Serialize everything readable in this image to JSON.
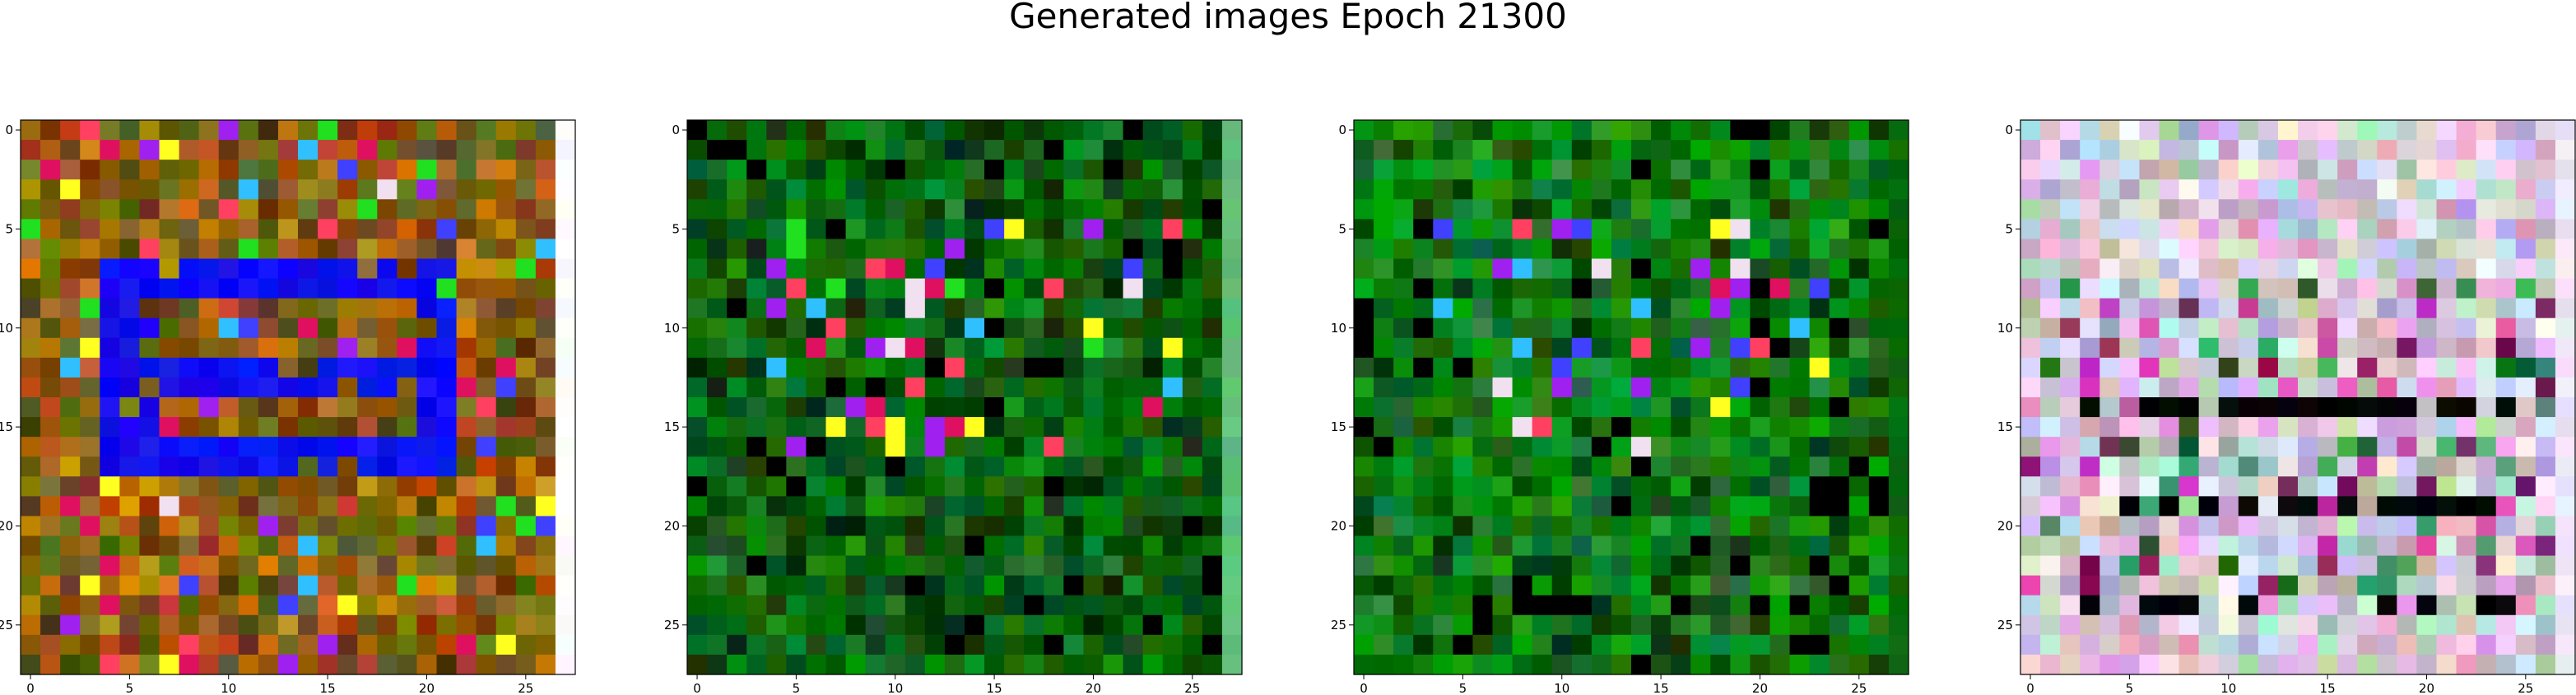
{
  "title": "Generated images Epoch 21300",
  "chart_data": {
    "type": "heatmap",
    "title": "Generated images Epoch 21300",
    "grid": false,
    "panels": [
      {
        "name": "",
        "xticks": [
          0,
          5,
          10,
          15,
          20,
          25
        ],
        "yticks": [
          0,
          5,
          10,
          15,
          20,
          25
        ],
        "xlim": [
          -0.5,
          27.5
        ],
        "ylim": [
          27.5,
          -0.5
        ],
        "style": "warm-noise",
        "base_colors": [
          "#7a6a0a",
          "#8a4a10",
          "#c08010",
          "#5a4a0a",
          "#b05a1a",
          "#6a5a20"
        ],
        "blue_digit_color": "#1010f0",
        "right_edge_color": "#ffffff"
      },
      {
        "name": "",
        "xticks": [
          0,
          5,
          10,
          15,
          20,
          25
        ],
        "yticks": [
          0,
          5,
          10,
          15,
          20,
          25
        ],
        "xlim": [
          -0.5,
          27.5
        ],
        "ylim": [
          27.5,
          -0.5
        ],
        "style": "green-noise",
        "base_colors": [
          "#0a5a0a",
          "#0a6a10",
          "#087808",
          "#044004",
          "#0f7a1a",
          "#065006"
        ],
        "right_edge_color": "#5fc07a"
      },
      {
        "name": "",
        "xticks": [
          0,
          5,
          10,
          15,
          20,
          25
        ],
        "yticks": [
          0,
          5,
          10,
          15,
          20,
          25
        ],
        "xlim": [
          -0.5,
          27.5
        ],
        "ylim": [
          27.5,
          -0.5
        ],
        "style": "green-noise-bright",
        "base_colors": [
          "#0a6a0a",
          "#0a8a10",
          "#068806",
          "#045004",
          "#108a1a",
          "#207a30"
        ],
        "right_edge_color": "#0a6a0a"
      },
      {
        "name": "",
        "xticks": [
          0,
          5,
          10,
          15,
          20,
          25
        ],
        "yticks": [
          0,
          5,
          10,
          15,
          20,
          25
        ],
        "xlim": [
          -0.5,
          27.5
        ],
        "ylim": [
          27.5,
          -0.5
        ],
        "style": "pastel-noise",
        "base_colors": [
          "#d8c8e0",
          "#c8b8d0",
          "#e0d0e8",
          "#b8c8b0",
          "#d0b0d0",
          "#c0d8d0",
          "#e8e0f0"
        ],
        "dark_band_color": "#050505",
        "right_edge_color": "#f0e8f8"
      }
    ]
  }
}
